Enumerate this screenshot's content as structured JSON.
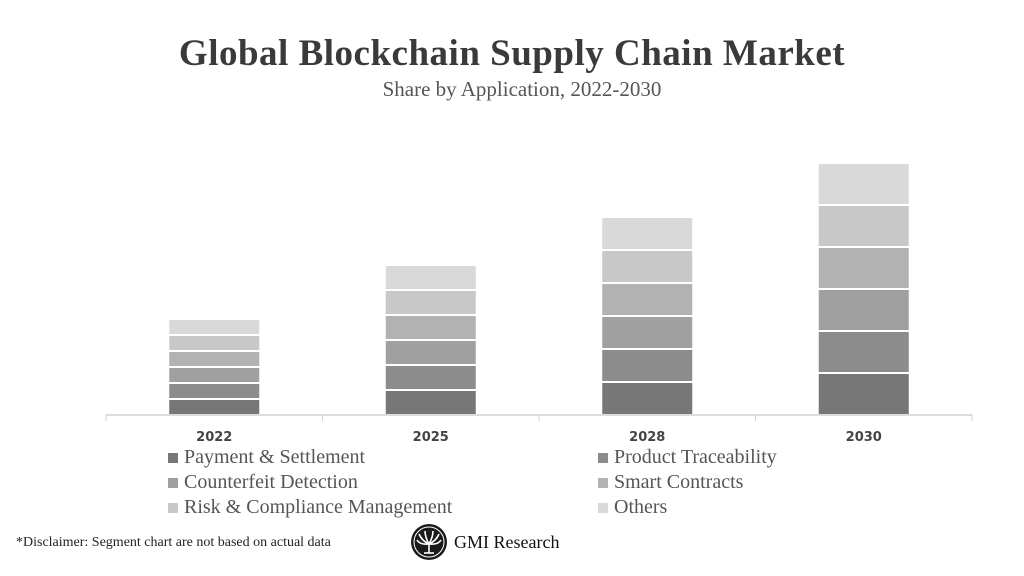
{
  "chart_data": {
    "type": "bar",
    "stacked": true,
    "title": "Global Blockchain Supply Chain Market",
    "subtitle": "Share by Application, 2022-2030",
    "categories": [
      "2022",
      "2025",
      "2028",
      "2030"
    ],
    "series": [
      {
        "name": "Payment & Settlement",
        "color": "#777777",
        "values": [
          16,
          25,
          33,
          42
        ]
      },
      {
        "name": "Product Traceability",
        "color": "#8c8c8c",
        "values": [
          16,
          25,
          33,
          42
        ]
      },
      {
        "name": "Counterfeit Detection",
        "color": "#a0a0a0",
        "values": [
          16,
          25,
          33,
          42
        ]
      },
      {
        "name": "Smart Contracts",
        "color": "#b2b2b2",
        "values": [
          16,
          25,
          33,
          42
        ]
      },
      {
        "name": "Risk & Compliance Management",
        "color": "#c8c8c8",
        "values": [
          16,
          25,
          33,
          42
        ]
      },
      {
        "name": "Others",
        "color": "#d9d9d9",
        "values": [
          16,
          25,
          33,
          42
        ]
      }
    ],
    "ylim": [
      0,
      260
    ],
    "y_axis_shown": false,
    "grid": false,
    "legend_position": "bottom"
  },
  "footer": {
    "disclaimer": "*Disclaimer:  Segment chart are not based on actual data",
    "logo_text": "GMI Research"
  }
}
